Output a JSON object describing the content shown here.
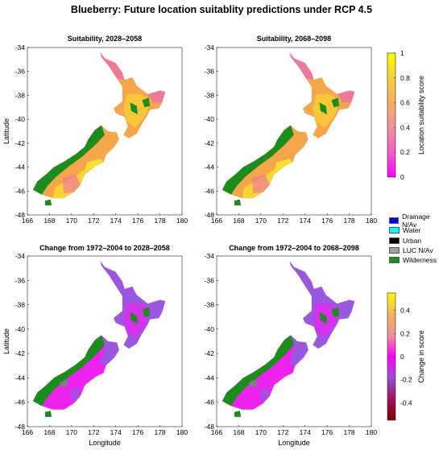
{
  "title": "Blueberry: Future location suitablity predictions under RCP 4.5",
  "panels": [
    {
      "title": "Suitability, 2028–2058",
      "kind": "suitability"
    },
    {
      "title": "Suitability, 2068–2098",
      "kind": "suitability"
    },
    {
      "title": "Change from 1972–2004 to 2028–2058",
      "kind": "change"
    },
    {
      "title": "Change from 1972–2004 to 2068–2098",
      "kind": "change"
    }
  ],
  "axes": {
    "xlabel": "Longitude",
    "ylabel": "Latitude",
    "xticks": [
      "166",
      "168",
      "170",
      "172",
      "174",
      "176",
      "178",
      "180"
    ],
    "yticks": [
      "-34",
      "-36",
      "-38",
      "-40",
      "-42",
      "-44",
      "-46",
      "-48"
    ],
    "xlim": [
      166,
      180
    ],
    "ylim": [
      -48,
      -34
    ]
  },
  "colorbar_suitability": {
    "label": "Location suitability score",
    "ticks": [
      "0",
      "0.2",
      "0.4",
      "0.6",
      "0.8",
      "1"
    ],
    "range": [
      0,
      1
    ],
    "colors": [
      "#ff00ff",
      "#f45cc8",
      "#f0909c",
      "#f5b060",
      "#f8cf38",
      "#ffff00"
    ]
  },
  "colorbar_change": {
    "label": "Change in score",
    "ticks": [
      "-0.4",
      "-0.2",
      "0",
      "0.2",
      "0.4"
    ],
    "range": [
      -0.55,
      0.55
    ],
    "colors": [
      "#7f0000",
      "#a0105a",
      "#9a4fd8",
      "#ff00ff",
      "#f0909c",
      "#f5b060",
      "#ffff00"
    ]
  },
  "category_legend": [
    {
      "label": "Drainage N/Av",
      "color": "#0000ff"
    },
    {
      "label": "Water",
      "color": "#00ffff"
    },
    {
      "label": "Urban",
      "color": "#000000"
    },
    {
      "label": "LUC N/Av",
      "color": "#a0a0a0"
    },
    {
      "label": "Wilderness",
      "color": "#1c8c1c"
    }
  ],
  "map_colors": {
    "suit_orange": "#f5a64a",
    "suit_pink": "#ee7a9a",
    "suit_yellow": "#f8e030",
    "wilderness": "#1c8c1c",
    "change_purple": "#9a58e0",
    "change_magenta": "#ee22ee",
    "luc_grey": "#808080"
  }
}
